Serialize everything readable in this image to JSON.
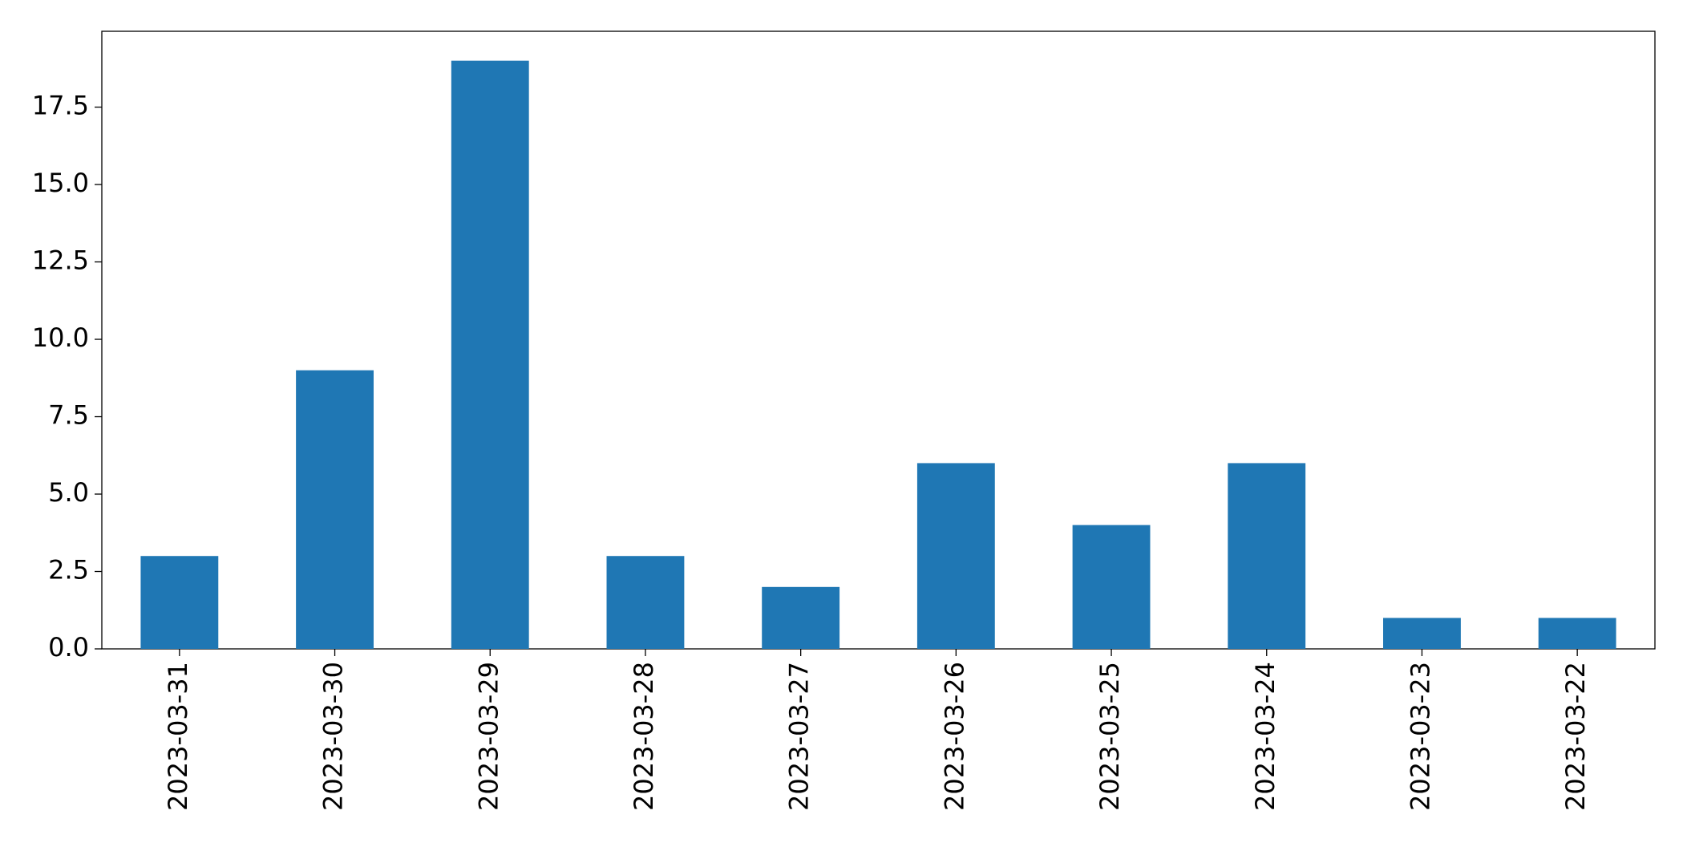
{
  "chart_data": {
    "type": "bar",
    "categories": [
      "2023-03-31",
      "2023-03-30",
      "2023-03-29",
      "2023-03-28",
      "2023-03-27",
      "2023-03-26",
      "2023-03-25",
      "2023-03-24",
      "2023-03-23",
      "2023-03-22"
    ],
    "values": [
      3,
      9,
      19,
      3,
      2,
      6,
      4,
      6,
      1,
      1
    ],
    "color": "#1f77b4",
    "ylim": [
      0,
      19.95
    ],
    "yticks": [
      {
        "value": 0,
        "label": "0.0"
      },
      2.5,
      {
        "value": 5,
        "label": "5.0"
      },
      7.5,
      {
        "value": 10,
        "label": "10.0"
      },
      12.5,
      {
        "value": 15,
        "label": "15.0"
      },
      17.5
    ],
    "grid": false
  }
}
